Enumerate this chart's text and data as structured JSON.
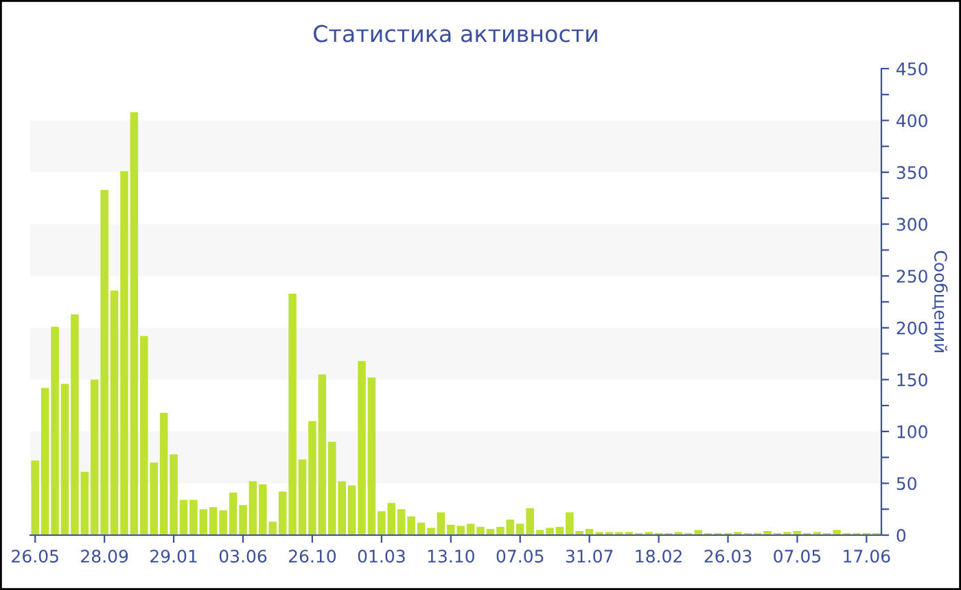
{
  "chart_data": {
    "type": "bar",
    "title": "Статистика активности",
    "ylabel": "Сообщений",
    "categories": [
      "26.05",
      null,
      null,
      null,
      null,
      null,
      null,
      "28.09",
      null,
      null,
      null,
      null,
      null,
      null,
      "29.01",
      null,
      null,
      null,
      null,
      null,
      null,
      "03.06",
      null,
      null,
      null,
      null,
      null,
      null,
      "26.10",
      null,
      null,
      null,
      null,
      null,
      null,
      "01.03",
      null,
      null,
      null,
      null,
      null,
      null,
      "13.10",
      null,
      null,
      null,
      null,
      null,
      null,
      "07.05",
      null,
      null,
      null,
      null,
      null,
      null,
      "31.07",
      null,
      null,
      null,
      null,
      null,
      null,
      "18.02",
      null,
      null,
      null,
      null,
      null,
      null,
      "26.03",
      null,
      null,
      null,
      null,
      null,
      null,
      "07.05",
      null,
      null,
      null,
      null,
      null,
      null,
      "17.06",
      null
    ],
    "values": [
      72,
      142,
      201,
      146,
      213,
      61,
      150,
      333,
      236,
      351,
      408,
      192,
      70,
      118,
      78,
      34,
      34,
      25,
      27,
      24,
      41,
      29,
      52,
      49,
      13,
      42,
      233,
      73,
      110,
      155,
      90,
      52,
      48,
      168,
      152,
      23,
      31,
      25,
      18,
      12,
      7,
      22,
      10,
      9,
      11,
      8,
      6,
      8,
      15,
      11,
      26,
      5,
      7,
      8,
      22,
      4,
      6,
      3,
      3,
      3,
      3,
      2,
      3,
      2,
      2,
      3,
      2,
      5,
      2,
      2,
      2,
      3,
      2,
      2,
      4,
      2,
      3,
      4,
      2,
      3,
      2,
      5,
      2,
      2,
      2,
      2
    ],
    "color": "#bde232",
    "ylim": [
      0,
      450
    ],
    "yticks": [
      0,
      {
        "value": 25,
        "label": null
      },
      50,
      {
        "value": 75,
        "label": null
      },
      100,
      {
        "value": 125,
        "label": null
      },
      150,
      {
        "value": 175,
        "label": null
      },
      200,
      {
        "value": 225,
        "label": null
      },
      250,
      {
        "value": 275,
        "label": null
      },
      300,
      {
        "value": 325,
        "label": null
      },
      350,
      {
        "value": 375,
        "label": null
      },
      400,
      {
        "value": 425,
        "label": null
      },
      450
    ],
    "bands": [
      {
        "axis": "y",
        "from": 50,
        "to": 100,
        "color": "#f7f7f7"
      },
      {
        "axis": "y",
        "from": 150,
        "to": 200,
        "color": "#f7f7f7"
      },
      {
        "axis": "y",
        "from": 250,
        "to": 300,
        "color": "#f7f7f7"
      },
      {
        "axis": "y",
        "from": 350,
        "to": 400,
        "color": "#f7f7f7"
      }
    ],
    "grid": false,
    "legend": false
  }
}
